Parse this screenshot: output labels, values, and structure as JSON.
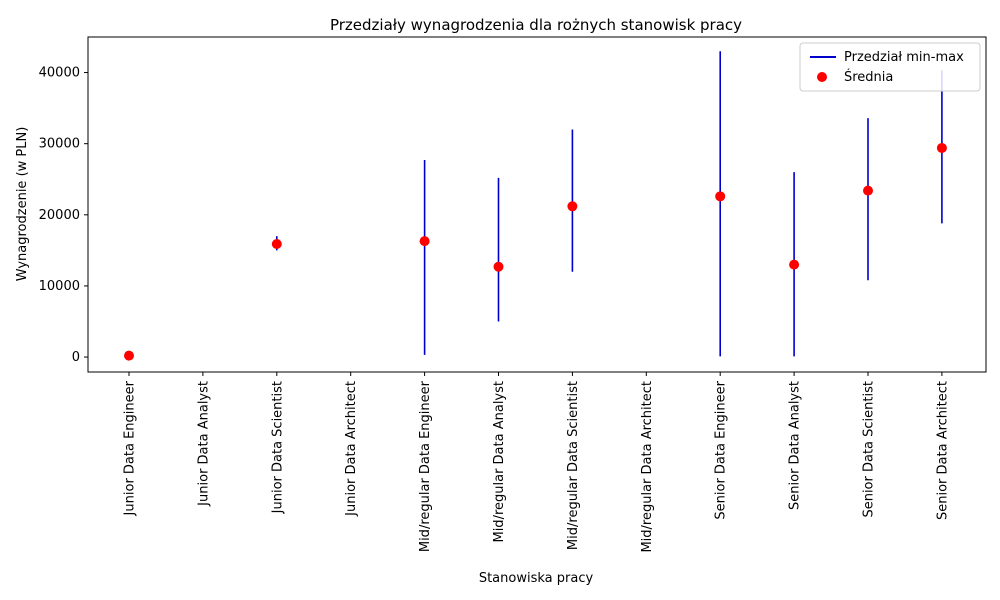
{
  "chart_data": {
    "type": "scatter",
    "title": "Przedziały wynagrodzenia dla rożnych stanowisk pracy",
    "xlabel": "Stanowiska pracy",
    "ylabel": "Wynagrodzenie (w PLN)",
    "ylim": [
      -2100,
      45000
    ],
    "yticks": [
      0,
      10000,
      20000,
      30000,
      40000
    ],
    "grid": false,
    "legend_position": "top-right",
    "categories": [
      "Junior Data Engineer",
      "Junior Data Analyst",
      "Junior Data Scientist",
      "Junior Data Architect",
      "Mid/regular Data Engineer",
      "Mid/regular Data Analyst",
      "Mid/regular Data Scientist",
      "Mid/regular Data Architect",
      "Senior Data Engineer",
      "Senior Data Analyst",
      "Senior Data Scientist",
      "Senior Data Architect"
    ],
    "series": [
      {
        "name": "Przedział min-max",
        "kind": "vlines",
        "color": "#0000cd",
        "min": [
          null,
          null,
          15000,
          null,
          300,
          5000,
          12000,
          null,
          100,
          100,
          10800,
          18800
        ],
        "max": [
          null,
          null,
          17000,
          null,
          27700,
          25200,
          32000,
          null,
          43000,
          26000,
          33600,
          40300
        ]
      },
      {
        "name": "Średnia",
        "kind": "scatter",
        "color": "#ff0000",
        "values": [
          200,
          null,
          15900,
          null,
          16300,
          12700,
          21200,
          null,
          22600,
          13000,
          23400,
          29400
        ]
      }
    ]
  }
}
